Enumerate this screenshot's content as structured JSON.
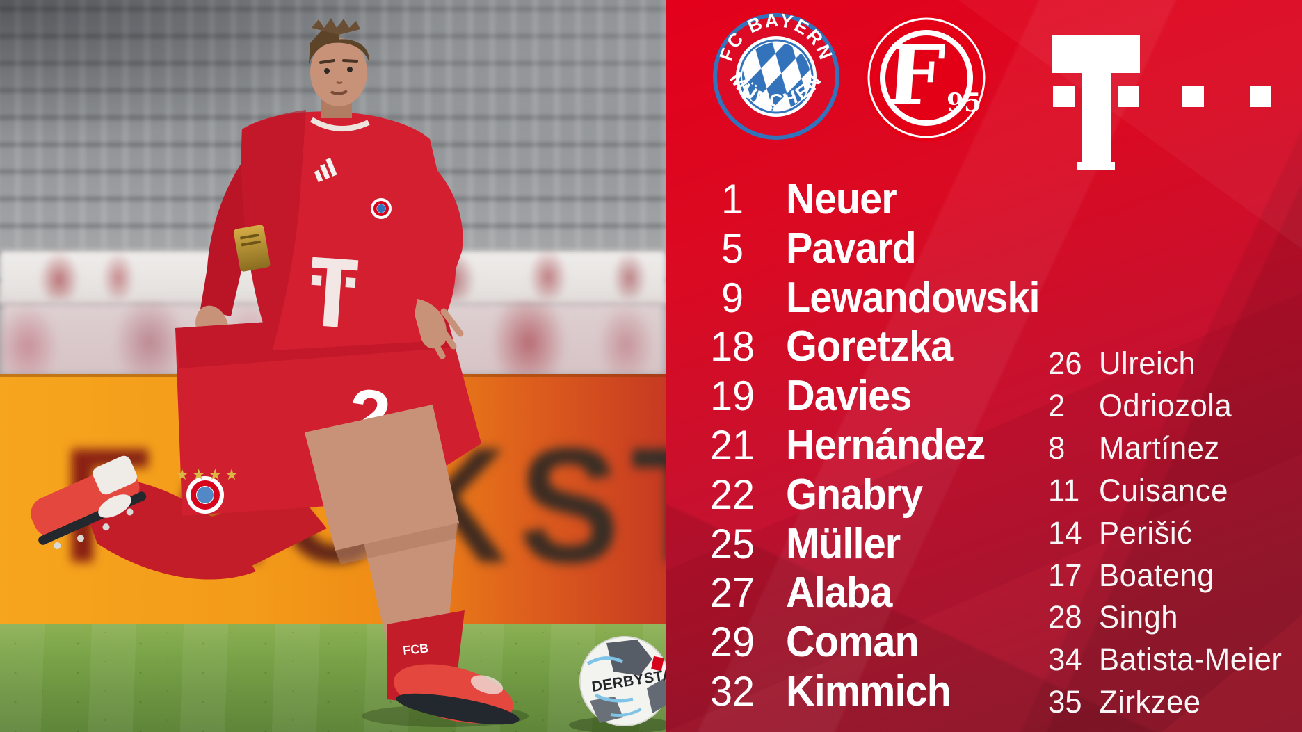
{
  "header": {
    "bayern_crest": {
      "top_text": "FC BAYERN",
      "bottom_text": "MÜNCHEN"
    },
    "f95_crest": {
      "letter": "F",
      "year": "95"
    },
    "telekom_logo": {
      "letter": "T"
    }
  },
  "lineup": {
    "starting_xi": [
      {
        "number": "1",
        "name": "Neuer"
      },
      {
        "number": "5",
        "name": "Pavard"
      },
      {
        "number": "9",
        "name": "Lewandowski"
      },
      {
        "number": "18",
        "name": "Goretzka"
      },
      {
        "number": "19",
        "name": "Davies"
      },
      {
        "number": "21",
        "name": "Hernández"
      },
      {
        "number": "22",
        "name": "Gnabry"
      },
      {
        "number": "25",
        "name": "Müller"
      },
      {
        "number": "27",
        "name": "Alaba"
      },
      {
        "number": "29",
        "name": "Coman"
      },
      {
        "number": "32",
        "name": "Kimmich"
      }
    ],
    "substitutes": [
      {
        "number": "26",
        "name": "Ulreich"
      },
      {
        "number": "2",
        "name": "Odriozola"
      },
      {
        "number": "8",
        "name": "Martínez"
      },
      {
        "number": "11",
        "name": "Cuisance"
      },
      {
        "number": "14",
        "name": "Perišić"
      },
      {
        "number": "17",
        "name": "Boateng"
      },
      {
        "number": "28",
        "name": "Singh"
      },
      {
        "number": "34",
        "name": "Batista-Meier"
      },
      {
        "number": "35",
        "name": "Zirkzee"
      }
    ]
  },
  "photo": {
    "board_text": "FACKST",
    "shorts_number": "2",
    "sock_text": "FCB",
    "ball_text": "DERBYSTAR",
    "jersey_sponsor_letter": "T"
  },
  "colors": {
    "panel_red": "#e3001b",
    "panel_red_dark": "#9c1b31",
    "bayern_blue": "#3273bb",
    "board_orange": "#f39b1a",
    "grass_green": "#6d9340",
    "white": "#ffffff"
  }
}
